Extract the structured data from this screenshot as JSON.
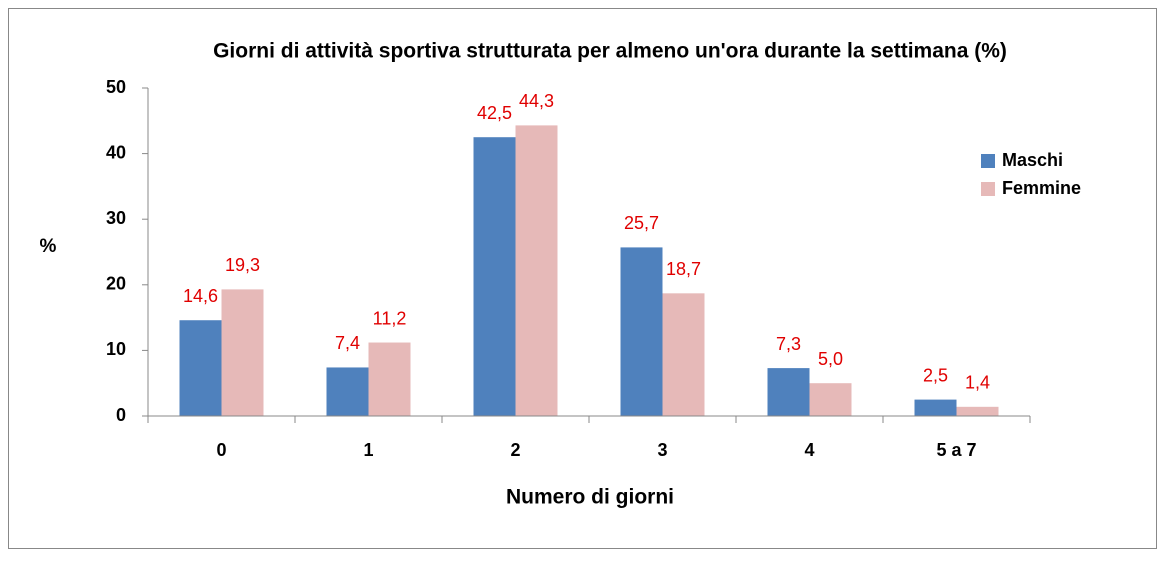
{
  "chart_data": {
    "type": "bar",
    "title": "Giorni di attività sportiva strutturata per almeno un'ora durante la settimana (%)",
    "x_label": "Numero di giorni",
    "y_label": "%",
    "categories": [
      "0",
      "1",
      "2",
      "3",
      "4",
      "5 a 7"
    ],
    "series": [
      {
        "name": "Maschi",
        "color": "#4f81bd",
        "values": [
          14.6,
          7.4,
          42.5,
          25.7,
          7.3,
          2.5
        ],
        "value_labels": [
          "14,6",
          "7,4",
          "42,5",
          "25,7",
          "7,3",
          "2,5"
        ]
      },
      {
        "name": "Femmine",
        "color": "#e6b9b8",
        "values": [
          19.3,
          11.2,
          44.3,
          18.7,
          5.0,
          1.4
        ],
        "value_labels": [
          "19,3",
          "11,2",
          "44,3",
          "18,7",
          "5,0",
          "1,4"
        ]
      }
    ],
    "ylim": [
      0,
      50
    ],
    "yticks": [
      0,
      10,
      20,
      30,
      40,
      50
    ],
    "grid": false,
    "legend": "right",
    "label_color": "#e00000"
  }
}
